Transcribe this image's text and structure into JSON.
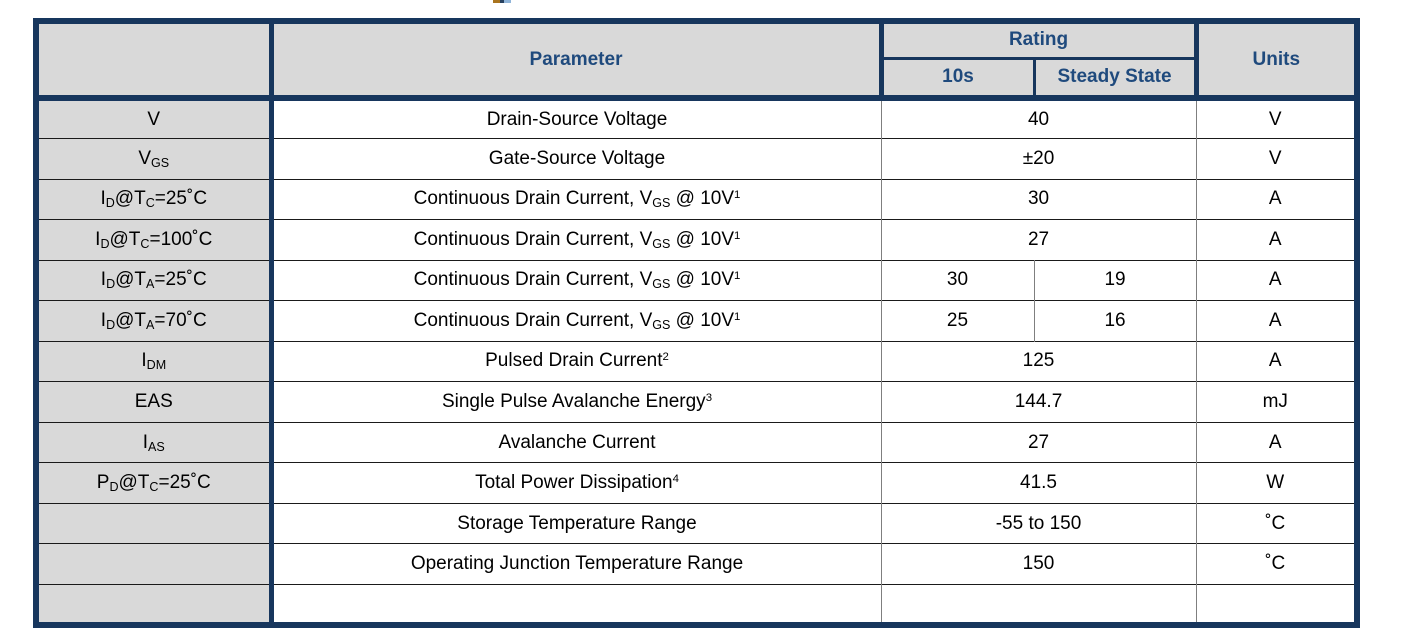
{
  "colors": {
    "border_navy": "#17365D",
    "header_text": "#1F4A7D",
    "fill_gray": "#D9D9D9",
    "grid_gray": "#7F7F7F",
    "line_black": "#1A1A1A",
    "page_bg": "#FFFFFF"
  },
  "table": {
    "header": {
      "parameter": "Parameter",
      "rating": "Rating",
      "rating_10s": "10s",
      "rating_steady": "Steady State",
      "units": "Units"
    },
    "rows": [
      {
        "symbol": "V",
        "parameter": "Drain-Source Voltage",
        "rating": "40",
        "units": "V"
      },
      {
        "symbol": "V_{GS}",
        "parameter": "Gate-Source Voltage",
        "rating": "±20",
        "units": "V"
      },
      {
        "symbol": "I_{D}@T_{C}=25˚C",
        "parameter": "Continuous Drain Current, V_{GS} @ 10V^{1}",
        "rating": "30",
        "units": "A"
      },
      {
        "symbol": "I_{D}@T_{C}=100˚C",
        "parameter": "Continuous Drain Current, V_{GS} @ 10V^{1}",
        "rating": "27",
        "units": "A"
      },
      {
        "symbol": "I_{D}@T_{A}=25˚C",
        "parameter": "Continuous Drain Current, V_{GS} @ 10V^{1}",
        "rating_10s": "30",
        "rating_steady": "19",
        "units": "A"
      },
      {
        "symbol": "I_{D}@T_{A}=70˚C",
        "parameter": "Continuous Drain Current, V_{GS} @ 10V^{1}",
        "rating_10s": "25",
        "rating_steady": "16",
        "units": "A"
      },
      {
        "symbol": "I_{DM}",
        "parameter": "Pulsed Drain Current^{2}",
        "rating": "125",
        "units": "A"
      },
      {
        "symbol": "EAS",
        "parameter": "Single Pulse Avalanche Energy^{3}",
        "rating": "144.7",
        "units": "mJ"
      },
      {
        "symbol": "I_{AS}",
        "parameter": "Avalanche Current",
        "rating": "27",
        "units": "A"
      },
      {
        "symbol": "P_{D}@T_{C}=25˚C",
        "parameter": "Total Power Dissipation^{4}",
        "rating": "41.5",
        "units": "W"
      },
      {
        "symbol": "",
        "parameter": "Storage Temperature Range",
        "rating": "-55 to 150",
        "units": "˚C"
      },
      {
        "symbol": "",
        "parameter": "Operating Junction Temperature Range",
        "rating": "150",
        "units": "˚C"
      },
      {
        "symbol": "",
        "parameter": "",
        "rating": "",
        "units": ""
      }
    ]
  }
}
